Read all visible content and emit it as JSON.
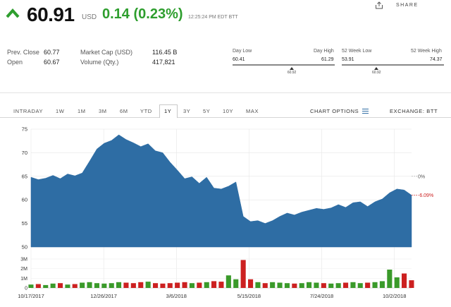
{
  "quote": {
    "price": "60.91",
    "currency": "USD",
    "change": "0.14 (0.23%)",
    "time": "12:25:24 PM EDT BTT",
    "direction_icon": "up-arrow-icon",
    "up_color": "#2e9e2e"
  },
  "share": {
    "label": "SHARE",
    "icon": "share-icon"
  },
  "stats": {
    "prev_close_label": "Prev. Close",
    "prev_close": "60.77",
    "open_label": "Open",
    "open": "60.67",
    "market_cap_label": "Market Cap (USD)",
    "market_cap": "116.45 B",
    "volume_label": "Volume (Qty.)",
    "volume": "417,821"
  },
  "day_range": {
    "low_label": "Day Low",
    "high_label": "Day High",
    "low": "60.41",
    "high": "61.29",
    "current": "60.92",
    "current_fraction": 0.58
  },
  "week52_range": {
    "low_label": "52 Week Low",
    "high_label": "52 Week High",
    "low": "53.91",
    "high": "74.37",
    "current": "60.92",
    "current_fraction": 0.34
  },
  "tabs": [
    "INTRADAY",
    "1W",
    "1M",
    "3M",
    "6M",
    "YTD",
    "1Y",
    "3Y",
    "5Y",
    "10Y",
    "MAX"
  ],
  "active_tab": "1Y",
  "chart_options_label": "CHART OPTIONS",
  "exchange_label": "EXCHANGE: BTT",
  "chart_data": {
    "type": "area",
    "area_color": "#2e6da4",
    "volume_up_color": "#3a9a2a",
    "volume_down_color": "#cc2020",
    "y_ticks": [
      "75",
      "70",
      "65",
      "60",
      "55",
      "50"
    ],
    "ylim": [
      50,
      75
    ],
    "volume_ticks": [
      "3M",
      "2M",
      "1M",
      "0"
    ],
    "volume_ylim": [
      0,
      3
    ],
    "x_ticks": [
      "10/17/2017",
      "12/26/2017",
      "3/6/2018",
      "5/15/2018",
      "7/24/2018",
      "10/2/2018"
    ],
    "reference_label": "0%",
    "reference_value": 65,
    "current_change_label": "-6.09%",
    "current_value": 61,
    "grid": true,
    "x": [
      "10/17/2017",
      "10/24/2017",
      "10/31/2017",
      "11/7/2017",
      "11/14/2017",
      "11/21/2017",
      "11/28/2017",
      "12/5/2017",
      "12/12/2017",
      "12/19/2017",
      "12/26/2017",
      "1/2/2018",
      "1/9/2018",
      "1/16/2018",
      "1/23/2018",
      "1/30/2018",
      "2/6/2018",
      "2/13/2018",
      "2/20/2018",
      "2/27/2018",
      "3/6/2018",
      "3/13/2018",
      "3/20/2018",
      "3/27/2018",
      "4/3/2018",
      "4/10/2018",
      "4/17/2018",
      "4/24/2018",
      "5/1/2018",
      "5/8/2018",
      "5/15/2018",
      "5/22/2018",
      "5/29/2018",
      "6/5/2018",
      "6/12/2018",
      "6/19/2018",
      "6/26/2018",
      "7/3/2018",
      "7/10/2018",
      "7/17/2018",
      "7/24/2018",
      "7/31/2018",
      "8/7/2018",
      "8/14/2018",
      "8/21/2018",
      "8/28/2018",
      "9/4/2018",
      "9/11/2018",
      "9/18/2018",
      "9/25/2018",
      "10/2/2018",
      "10/9/2018",
      "10/16/2018"
    ],
    "close": [
      64.8,
      64.3,
      64.6,
      65.2,
      64.5,
      65.5,
      65.1,
      65.7,
      68.2,
      70.8,
      72.0,
      72.6,
      73.8,
      72.8,
      72.1,
      71.3,
      71.9,
      70.4,
      70.0,
      68.0,
      66.3,
      64.5,
      64.9,
      63.5,
      64.8,
      62.5,
      62.3,
      62.9,
      63.8,
      56.5,
      55.4,
      55.6,
      55.0,
      55.6,
      56.5,
      57.2,
      56.8,
      57.4,
      57.8,
      58.2,
      58.0,
      58.3,
      59.0,
      58.4,
      59.4,
      59.6,
      58.6,
      59.6,
      60.2,
      61.5,
      62.3,
      62.1,
      61.0
    ],
    "volume": [
      0.35,
      0.4,
      0.3,
      0.45,
      0.5,
      0.35,
      0.4,
      0.55,
      0.6,
      0.5,
      0.45,
      0.5,
      0.6,
      0.55,
      0.5,
      0.6,
      0.65,
      0.5,
      0.45,
      0.5,
      0.55,
      0.6,
      0.5,
      0.55,
      0.6,
      0.7,
      0.65,
      1.3,
      0.9,
      2.9,
      0.9,
      0.6,
      0.5,
      0.6,
      0.55,
      0.5,
      0.45,
      0.5,
      0.6,
      0.55,
      0.5,
      0.45,
      0.5,
      0.55,
      0.6,
      0.5,
      0.55,
      0.6,
      0.7,
      1.9,
      1.1,
      1.5,
      0.8
    ],
    "volume_up": [
      1,
      0,
      1,
      1,
      0,
      1,
      0,
      1,
      1,
      1,
      1,
      1,
      1,
      0,
      0,
      0,
      1,
      0,
      0,
      0,
      0,
      0,
      1,
      0,
      1,
      0,
      0,
      1,
      1,
      0,
      0,
      1,
      0,
      1,
      1,
      1,
      0,
      1,
      1,
      1,
      0,
      1,
      1,
      0,
      1,
      1,
      0,
      1,
      1,
      1,
      1,
      0,
      0
    ]
  }
}
